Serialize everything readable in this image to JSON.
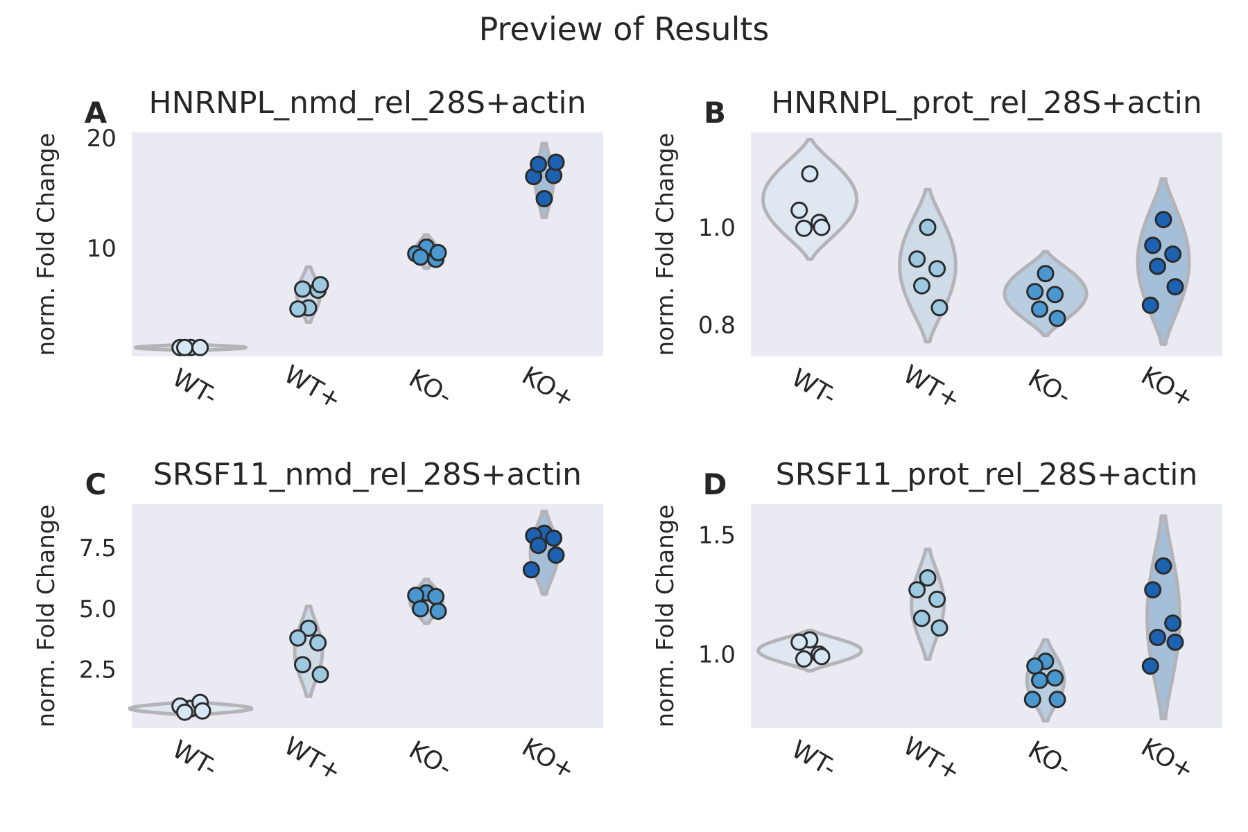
{
  "figure": {
    "title": "Preview of Results"
  },
  "colors": {
    "background": "#eaeaf2",
    "violin_stroke": "#b3b3b8",
    "point_stroke": "#2b2b2b",
    "groups": [
      "#d6e6f5",
      "#9ecae1",
      "#4a98cf",
      "#1c62b0"
    ],
    "violin_fill": [
      "#dfe7f1",
      "#d0dbe8",
      "#b9cde0",
      "#a6bfd9"
    ]
  },
  "chart_data": [
    {
      "panel": "A",
      "type": "violin+strip",
      "title": "HNRNPL_nmd_rel_28S+actin",
      "xlabel": "",
      "ylabel": "norm. Fold Change",
      "categories": [
        "WT-",
        "WT+",
        "KO-",
        "KO+"
      ],
      "ylim": [
        0.2,
        20.5
      ],
      "yticks": [
        10,
        20
      ],
      "ytick_labels": [
        "10",
        "20"
      ],
      "points": [
        [
          1.0,
          1.0,
          1.0,
          1.0
        ],
        [
          4.6,
          4.5,
          6.2,
          6.3,
          6.7
        ],
        [
          10.1,
          9.5,
          9.0,
          9.2,
          9.6
        ],
        [
          14.5,
          16.5,
          16.6,
          17.6,
          17.8
        ]
      ],
      "violins": [
        {
          "range": [
            0.7,
            1.3
          ],
          "max_width": 0.45
        },
        {
          "range": [
            3.3,
            8.3
          ],
          "max_width": 0.08
        },
        {
          "range": [
            8.2,
            11.2
          ],
          "max_width": 0.08
        },
        {
          "range": [
            12.8,
            19.5
          ],
          "max_width": 0.06
        }
      ]
    },
    {
      "panel": "B",
      "type": "violin+strip",
      "title": "HNRNPL_prot_rel_28S+actin",
      "xlabel": "",
      "ylabel": "norm. Fold Change",
      "categories": [
        "WT-",
        "WT+",
        "KO-",
        "KO+"
      ],
      "ylim": [
        0.735,
        1.195
      ],
      "yticks": [
        0.8,
        1.0
      ],
      "ytick_labels": [
        "0.8",
        "1.0"
      ],
      "points": [
        [
          1.11,
          1.035,
          1.01,
          0.998,
          1.0
        ],
        [
          1.0,
          0.935,
          0.915,
          0.88,
          0.835
        ],
        [
          0.905,
          0.868,
          0.862,
          0.832,
          0.813
        ],
        [
          1.016,
          0.963,
          0.945,
          0.92,
          0.878,
          0.84
        ]
      ],
      "violins": [
        {
          "range": [
            0.935,
            1.18
          ],
          "max_width": 0.38
        },
        {
          "range": [
            0.765,
            1.078
          ],
          "max_width": 0.22
        },
        {
          "range": [
            0.778,
            0.95
          ],
          "max_width": 0.33
        },
        {
          "range": [
            0.76,
            1.1
          ],
          "max_width": 0.2
        }
      ]
    },
    {
      "panel": "C",
      "type": "violin+strip",
      "title": "SRSF11_nmd_rel_28S+actin",
      "xlabel": "",
      "ylabel": "norm. Fold Change",
      "categories": [
        "WT-",
        "WT+",
        "KO-",
        "KO+"
      ],
      "ylim": [
        0.1,
        9.3
      ],
      "yticks": [
        2.5,
        5.0,
        7.5
      ],
      "ytick_labels": [
        "2.5",
        "5.0",
        "7.5"
      ],
      "points": [
        [
          0.9,
          1.0,
          1.15,
          0.75,
          0.8
        ],
        [
          4.2,
          3.8,
          3.6,
          2.7,
          2.3
        ],
        [
          5.65,
          5.55,
          5.5,
          5.0,
          4.9
        ],
        [
          8.1,
          8.0,
          7.9,
          7.6,
          7.2,
          6.6
        ]
      ],
      "violins": [
        {
          "range": [
            0.6,
            1.2
          ],
          "max_width": 0.5
        },
        {
          "range": [
            1.4,
            5.1
          ],
          "max_width": 0.1
        },
        {
          "range": [
            4.4,
            6.2
          ],
          "max_width": 0.12
        },
        {
          "range": [
            5.6,
            9.0
          ],
          "max_width": 0.1
        }
      ]
    },
    {
      "panel": "D",
      "type": "violin+strip",
      "title": "SRSF11_prot_rel_28S+actin",
      "xlabel": "",
      "ylabel": "norm. Fold Change",
      "categories": [
        "WT-",
        "WT+",
        "KO-",
        "KO+"
      ],
      "ylim": [
        0.69,
        1.63
      ],
      "yticks": [
        1.0,
        1.5
      ],
      "ytick_labels": [
        "1.0",
        "1.5"
      ],
      "points": [
        [
          1.06,
          1.05,
          1.0,
          0.98,
          0.99
        ],
        [
          1.32,
          1.27,
          1.23,
          1.15,
          1.11
        ],
        [
          0.97,
          0.95,
          0.9,
          0.89,
          0.81,
          0.81
        ],
        [
          1.37,
          1.27,
          1.13,
          1.07,
          1.05,
          0.95
        ]
      ],
      "violins": [
        {
          "range": [
            0.93,
            1.1
          ],
          "max_width": 0.42
        },
        {
          "range": [
            0.98,
            1.44
          ],
          "max_width": 0.12
        },
        {
          "range": [
            0.72,
            1.06
          ],
          "max_width": 0.14
        },
        {
          "range": [
            0.73,
            1.58
          ],
          "max_width": 0.12
        }
      ]
    }
  ]
}
